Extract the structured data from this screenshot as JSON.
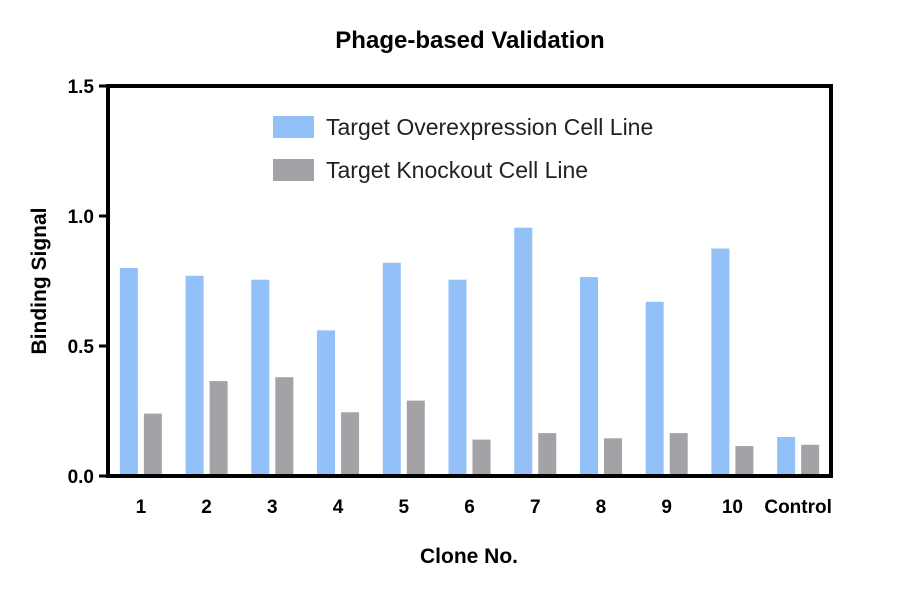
{
  "chart_data": {
    "type": "bar",
    "title": "Phage-based Validation",
    "xlabel": "Clone No.",
    "ylabel": "Binding Signal",
    "ylim": [
      0,
      1.5
    ],
    "yticks": [
      "0.0",
      "0.5",
      "1.0",
      "1.5"
    ],
    "categories": [
      "1",
      "2",
      "3",
      "4",
      "5",
      "6",
      "7",
      "8",
      "9",
      "10",
      "Control"
    ],
    "series": [
      {
        "name": "Target Overexpression Cell Line",
        "color": "#92c0f7",
        "values": [
          0.8,
          0.77,
          0.755,
          0.56,
          0.82,
          0.755,
          0.955,
          0.765,
          0.67,
          0.875,
          0.15
        ]
      },
      {
        "name": "Target Knockout Cell Line",
        "color": "#a3a3a7",
        "values": [
          0.24,
          0.365,
          0.38,
          0.245,
          0.29,
          0.14,
          0.165,
          0.145,
          0.165,
          0.115,
          0.12
        ]
      }
    ],
    "legend": "top-center",
    "grid": false
  }
}
